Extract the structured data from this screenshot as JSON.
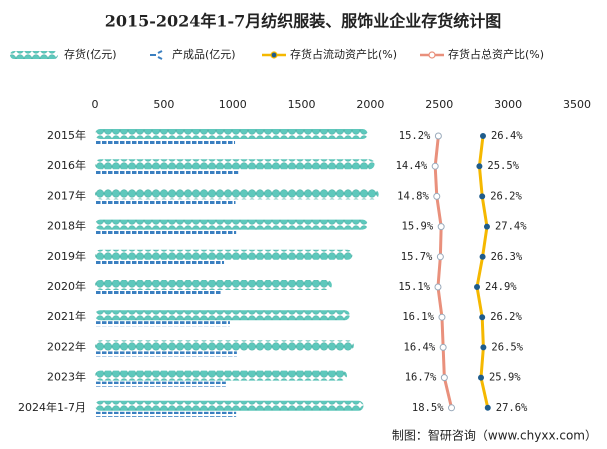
{
  "chart_data": {
    "type": "bar",
    "orientation": "horizontal",
    "title": "2015-2024年1-7月纺织服装、服饰业企业存货统计图",
    "categories": [
      "2015年",
      "2016年",
      "2017年",
      "2018年",
      "2019年",
      "2020年",
      "2021年",
      "2022年",
      "2023年",
      "2024年1-7月"
    ],
    "xlim": [
      0,
      3500
    ],
    "xticks": [
      0,
      500,
      1000,
      1500,
      2000,
      2500,
      3000,
      3500
    ],
    "x2lim": [
      -71,
      50
    ],
    "series": [
      {
        "name": "存货(亿元)",
        "type": "bar",
        "color": "#5ec8bc",
        "values": [
          1980,
          2030,
          2060,
          1980,
          1870,
          1720,
          1850,
          1880,
          1830,
          1950
        ]
      },
      {
        "name": "产成品(亿元)",
        "type": "bar",
        "color": "#3a7fc0",
        "values": [
          1017,
          1040,
          1020,
          1025,
          937,
          915,
          980,
          1030,
          950,
          1025
        ]
      },
      {
        "name": "存货占流动资产比(%)",
        "type": "line",
        "axis": "x2",
        "color": "#f5b800",
        "marker_color": "#1f5c8c",
        "label_color": "#2a8a8a",
        "values": [
          26.4,
          25.5,
          26.2,
          27.4,
          26.3,
          24.9,
          26.2,
          26.5,
          25.9,
          27.6
        ],
        "value_labels": [
          "26.4%",
          "25.5%",
          "26.2%",
          "27.4%",
          "26.3%",
          "24.9%",
          "26.2%",
          "26.5%",
          "25.9%",
          "27.6%"
        ]
      },
      {
        "name": "存货占总资产比(%)",
        "type": "line",
        "axis": "x2",
        "color": "#e9907c",
        "marker_color": "#ffffff",
        "label_color": "#e02828",
        "values": [
          15.2,
          14.4,
          14.8,
          15.9,
          15.7,
          15.1,
          16.1,
          16.4,
          16.7,
          18.5
        ],
        "value_labels": [
          "15.2%",
          "14.4%",
          "14.8%",
          "15.9%",
          "15.7%",
          "15.1%",
          "16.1%",
          "16.4%",
          "16.7%",
          "18.5%"
        ]
      }
    ],
    "source": "制图：智研咨询（www.chyxx.com）"
  }
}
